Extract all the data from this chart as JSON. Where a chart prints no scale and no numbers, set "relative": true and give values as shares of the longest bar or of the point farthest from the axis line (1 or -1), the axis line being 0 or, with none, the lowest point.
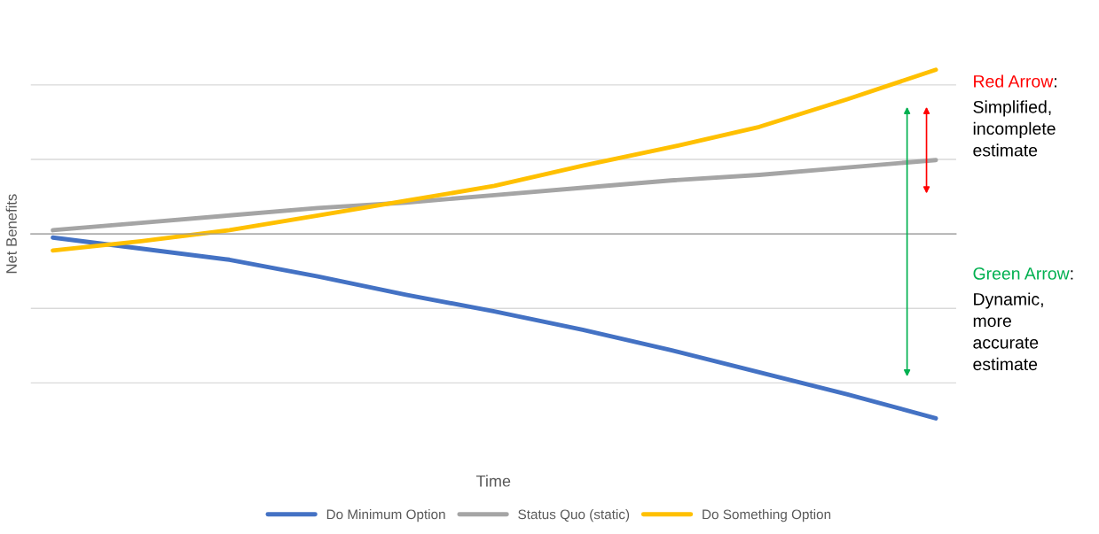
{
  "chart_data": {
    "type": "line",
    "relative": true,
    "xlabel": "Time",
    "ylabel": "Net Benefits",
    "categories": [
      null,
      null,
      null,
      null,
      null,
      null,
      null,
      null,
      null,
      null,
      null
    ],
    "series": [
      {
        "name": "Do Minimum Option",
        "color": "#4472c4",
        "values": [
          -0.02,
          -0.08,
          -0.14,
          -0.23,
          -0.33,
          -0.42,
          -0.52,
          -0.63,
          -0.75,
          -0.87,
          -1
        ]
      },
      {
        "name": "Status Quo (static)",
        "color": "#a5a5a5",
        "values": [
          0.02,
          0.06,
          0.1,
          0.14,
          0.17,
          0.21,
          0.25,
          0.29,
          0.32,
          0.36,
          0.4
        ]
      },
      {
        "name": "Do Something Option",
        "color": "#ffc000",
        "values": [
          -0.09,
          -0.04,
          0.02,
          0.1,
          0.18,
          0.26,
          0.37,
          0.47,
          0.58,
          0.73,
          0.89
        ]
      }
    ],
    "annotations": [
      "Red Arrow:\nSimplified,\nincomplete\nestimate",
      "Green Arrow:\nDynamic,\nmore\naccurate\nestimate"
    ],
    "grid": "y",
    "legend": "bottom",
    "marker": "none",
    "line_style": "solid"
  }
}
